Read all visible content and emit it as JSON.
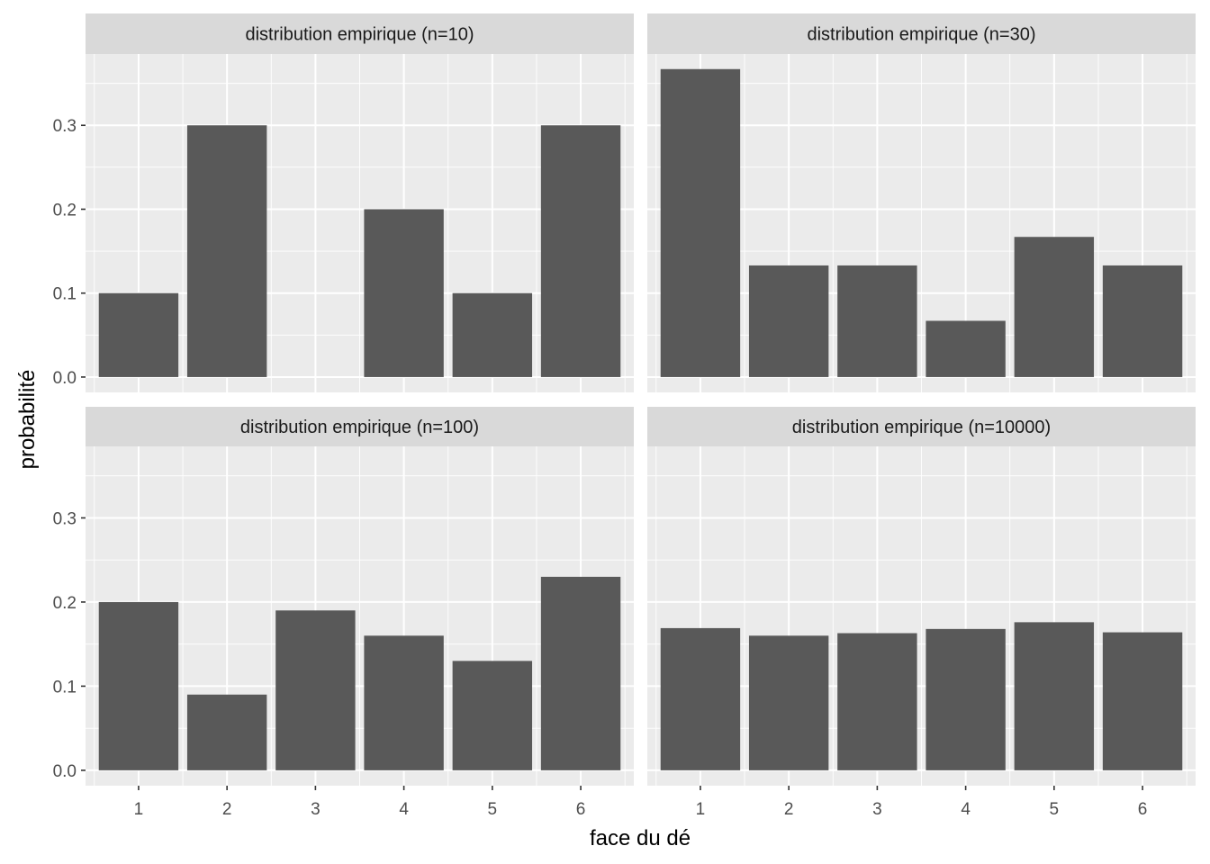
{
  "chart_data": {
    "type": "bar",
    "layout": "facet grid 2x2",
    "xlabel": "face du dé",
    "ylabel": "probabilité",
    "categories": [
      "1",
      "2",
      "3",
      "4",
      "5",
      "6"
    ],
    "yticks": [
      "0.0",
      "0.1",
      "0.2",
      "0.3"
    ],
    "ylim": [
      0,
      0.385
    ],
    "grid": true,
    "colors": {
      "bar": "#595959",
      "panel_background": "#ebebeb",
      "strip_background": "#d9d9d9",
      "grid": "#ffffff"
    },
    "panels": [
      {
        "title": "distribution empirique (n=10)",
        "values": [
          0.1,
          0.3,
          0.0,
          0.2,
          0.1,
          0.3
        ]
      },
      {
        "title": "distribution empirique (n=30)",
        "values": [
          0.367,
          0.133,
          0.133,
          0.067,
          0.167,
          0.133
        ]
      },
      {
        "title": "distribution empirique (n=100)",
        "values": [
          0.2,
          0.09,
          0.19,
          0.16,
          0.13,
          0.23
        ]
      },
      {
        "title": "distribution empirique (n=10000)",
        "values": [
          0.169,
          0.16,
          0.163,
          0.168,
          0.176,
          0.164
        ]
      }
    ]
  }
}
